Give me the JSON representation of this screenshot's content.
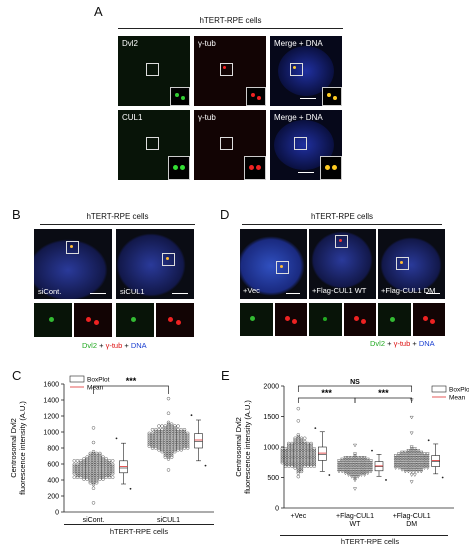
{
  "panels": {
    "a": {
      "letter": "A",
      "header": "hTERT-RPE cells",
      "rows": [
        {
          "labels": [
            "Dvl2",
            "γ-tub",
            "Merge + DNA"
          ]
        },
        {
          "labels": [
            "CUL1",
            "γ-tub",
            "Merge + DNA"
          ]
        }
      ]
    },
    "b": {
      "letter": "B",
      "header": "hTERT-RPE cells",
      "tiles": [
        "siCont.",
        "siCUL1"
      ],
      "legend": {
        "green": "Dvl2",
        "plus1": " + ",
        "red": "γ-tub",
        "plus2": " + ",
        "blue": "DNA"
      }
    },
    "d": {
      "letter": "D",
      "header": "hTERT-RPE cells",
      "tiles": [
        "+Vec",
        "+Flag-CUL1 WT",
        "+Flag-CUL1 DM"
      ],
      "legend": {
        "green": "Dvl2",
        "plus1": " + ",
        "red": "γ-tub",
        "plus2": " + ",
        "blue": "DNA"
      }
    },
    "c": {
      "letter": "C",
      "xcap": "hTERT-RPE cells"
    },
    "e": {
      "letter": "E",
      "xcap": "hTERT-RPE cells"
    }
  },
  "colors": {
    "green": "#22aa22",
    "red": "#dd1111",
    "blue": "#1a3fd0",
    "mean": "#e03030"
  },
  "chart_data": [
    {
      "type": "scatter",
      "panel": "C",
      "ylabel": "Centrosomal Dvl2\nfluorescence intensity (A.U.)",
      "ylim": [
        0,
        1600
      ],
      "yticks": [
        0,
        200,
        400,
        600,
        800,
        1000,
        1200,
        1400,
        1600
      ],
      "categories": [
        "siCont.",
        "siCUL1"
      ],
      "significance": "***",
      "legend": [
        "BoxPlot",
        "Mean"
      ],
      "legend_position": "top-left",
      "box": [
        {
          "min": 350,
          "q1": 490,
          "median": 550,
          "q3": 640,
          "max": 860,
          "mean": 570
        },
        {
          "min": 640,
          "q1": 800,
          "median": 880,
          "q3": 980,
          "max": 1150,
          "mean": 900
        }
      ],
      "distribution": [
        {
          "center": 550,
          "spread": 130,
          "low": 120,
          "high": 1060
        },
        {
          "center": 900,
          "spread": 140,
          "low": 530,
          "high": 1420
        }
      ]
    },
    {
      "type": "scatter",
      "panel": "E",
      "ylabel": "Centrosomal Dvl2\nfluorescence intensity (A.U.)",
      "ylim": [
        0,
        2000
      ],
      "yticks": [
        0,
        500,
        1000,
        1500,
        2000
      ],
      "categories": [
        "+Vec",
        "+Flag-CUL1\nWT",
        "+Flag-CUL1\nDM"
      ],
      "significance": [
        {
          "from": 0,
          "to": 2,
          "label": "NS"
        },
        {
          "from": 0,
          "to": 1,
          "label": "***"
        },
        {
          "from": 1,
          "to": 2,
          "label": "***"
        }
      ],
      "legend": [
        "BoxPlot",
        "Mean"
      ],
      "legend_position": "top-right",
      "box": [
        {
          "min": 600,
          "q1": 780,
          "median": 880,
          "q3": 1000,
          "max": 1250,
          "mean": 900
        },
        {
          "min": 520,
          "q1": 610,
          "median": 680,
          "q3": 760,
          "max": 880,
          "mean": 690
        },
        {
          "min": 560,
          "q1": 680,
          "median": 760,
          "q3": 860,
          "max": 1050,
          "mean": 780
        }
      ],
      "distribution": [
        {
          "center": 880,
          "spread": 190,
          "low": 520,
          "high": 1640
        },
        {
          "center": 680,
          "spread": 110,
          "low": 300,
          "high": 1040
        },
        {
          "center": 760,
          "spread": 130,
          "low": 440,
          "high": 1760
        }
      ]
    }
  ]
}
